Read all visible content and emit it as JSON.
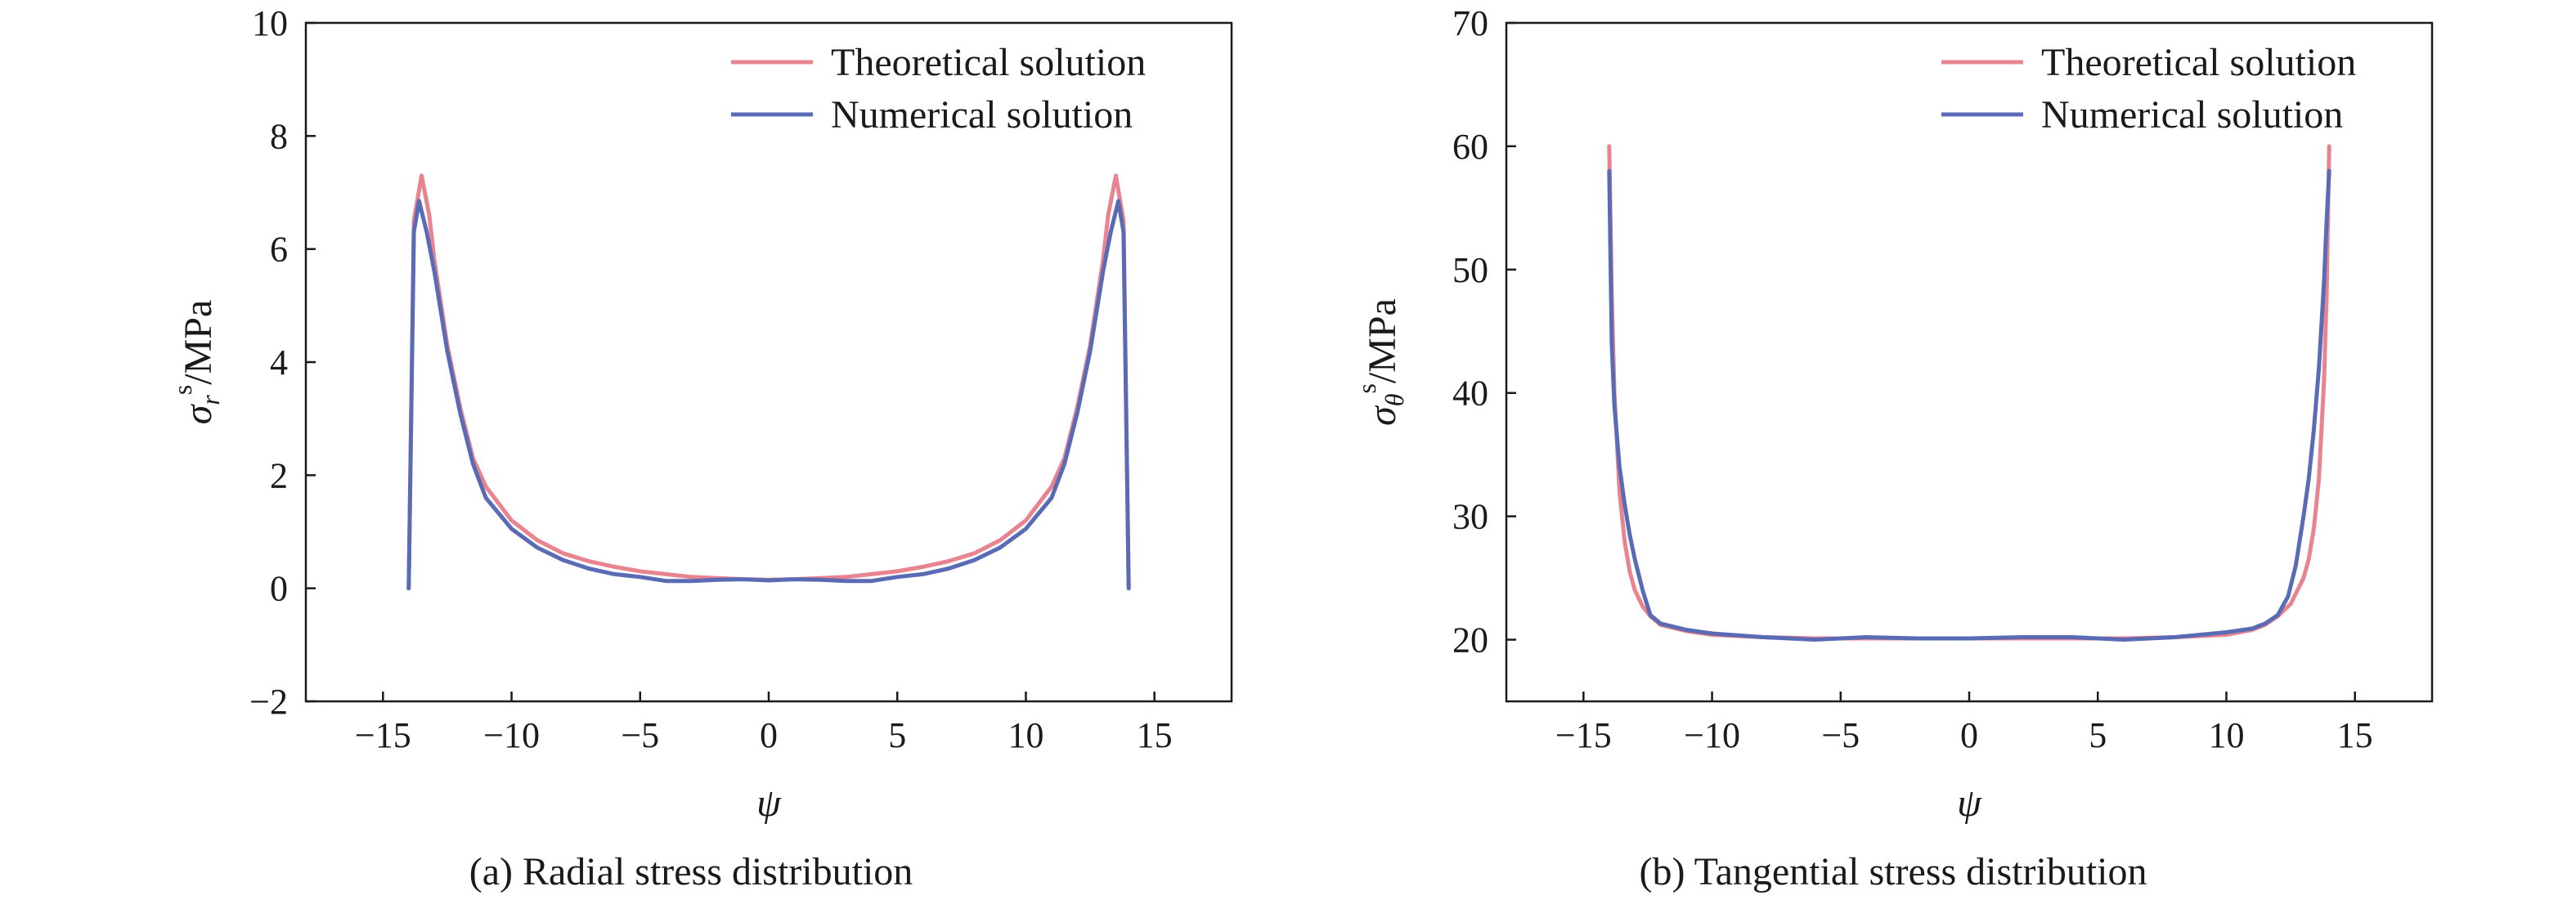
{
  "colors": {
    "theoretical": "#e8848f",
    "numerical": "#5a6bb5",
    "axis": "#1a1a1a"
  },
  "chart_data": [
    {
      "type": "line",
      "caption": "(a) Radial stress distribution",
      "xlabel": "ψ",
      "ylabel": "σrs/MPa",
      "ylabel_parts": {
        "base": "σ",
        "sub": "r",
        "sup": "s",
        "unit": "/MPa"
      },
      "xlim": [
        -18,
        18
      ],
      "ylim": [
        -2,
        10
      ],
      "xticks": [
        -15,
        -10,
        -5,
        0,
        5,
        10,
        15
      ],
      "yticks": [
        -2,
        0,
        2,
        4,
        6,
        8,
        10
      ],
      "xtick_labels": [
        "−15",
        "−10",
        "−5",
        "0",
        "5",
        "10",
        "15"
      ],
      "ytick_labels": [
        "−2",
        "0",
        "2",
        "4",
        "6",
        "8",
        "10"
      ],
      "grid": false,
      "legend_position": "top-right",
      "series": [
        {
          "name": "Theoretical solution",
          "color_key": "theoretical",
          "x": [
            -14,
            -13.8,
            -13.5,
            -13.2,
            -13,
            -12.5,
            -12,
            -11.5,
            -11,
            -10,
            -9,
            -8,
            -7,
            -6,
            -5,
            -4,
            -3,
            -2,
            -1,
            0,
            1,
            2,
            3,
            4,
            5,
            6,
            7,
            8,
            9,
            10,
            11,
            11.5,
            12,
            12.5,
            13,
            13.2,
            13.5,
            13.8,
            14
          ],
          "y": [
            0,
            6.5,
            7.3,
            6.6,
            5.8,
            4.3,
            3.2,
            2.3,
            1.8,
            1.2,
            0.85,
            0.62,
            0.48,
            0.38,
            0.3,
            0.25,
            0.2,
            0.18,
            0.16,
            0.15,
            0.16,
            0.18,
            0.2,
            0.25,
            0.3,
            0.38,
            0.48,
            0.62,
            0.85,
            1.2,
            1.8,
            2.3,
            3.2,
            4.3,
            5.8,
            6.6,
            7.3,
            6.5,
            0
          ]
        },
        {
          "name": "Numerical solution",
          "color_key": "numerical",
          "x": [
            -14,
            -13.8,
            -13.6,
            -13.3,
            -13,
            -12.5,
            -12,
            -11.5,
            -11,
            -10,
            -9,
            -8,
            -7,
            -6,
            -5,
            -4,
            -3,
            -2,
            -1,
            0,
            1,
            2,
            3,
            4,
            5,
            6,
            7,
            8,
            9,
            10,
            11,
            11.5,
            12,
            12.5,
            13,
            13.3,
            13.6,
            13.8,
            14
          ],
          "y": [
            0,
            6.3,
            6.85,
            6.3,
            5.6,
            4.2,
            3.1,
            2.2,
            1.6,
            1.05,
            0.72,
            0.5,
            0.35,
            0.25,
            0.2,
            0.13,
            0.13,
            0.15,
            0.16,
            0.14,
            0.16,
            0.15,
            0.13,
            0.13,
            0.2,
            0.25,
            0.35,
            0.5,
            0.72,
            1.05,
            1.6,
            2.2,
            3.1,
            4.2,
            5.6,
            6.3,
            6.85,
            6.3,
            0
          ]
        }
      ]
    },
    {
      "type": "line",
      "caption": "(b) Tangential stress distribution",
      "xlabel": "ψ",
      "ylabel": "σθs/MPa",
      "ylabel_parts": {
        "base": "σ",
        "sub": "θ",
        "sup": "s",
        "unit": "/MPa"
      },
      "xlim": [
        -18,
        18
      ],
      "ylim": [
        15,
        70
      ],
      "xticks": [
        -15,
        -10,
        -5,
        0,
        5,
        10,
        15
      ],
      "yticks": [
        20,
        30,
        40,
        50,
        60,
        70
      ],
      "xtick_labels": [
        "−15",
        "−10",
        "−5",
        "0",
        "5",
        "10",
        "15"
      ],
      "ytick_labels": [
        "20",
        "30",
        "40",
        "50",
        "60",
        "70"
      ],
      "grid": false,
      "legend_position": "top-right",
      "series": [
        {
          "name": "Theoretical solution",
          "color_key": "theoretical",
          "x": [
            -14,
            -13.9,
            -13.8,
            -13.6,
            -13.4,
            -13.2,
            -13,
            -12.7,
            -12.4,
            -12,
            -11,
            -10,
            -8,
            -6,
            -4,
            -2,
            0,
            2,
            4,
            6,
            8,
            10,
            11,
            11.5,
            12,
            12.5,
            13,
            13.2,
            13.4,
            13.6,
            13.8,
            13.9,
            14
          ],
          "y": [
            60,
            48,
            40,
            32,
            28,
            25.5,
            24,
            22.7,
            21.9,
            21.2,
            20.7,
            20.4,
            20.2,
            20.1,
            20.1,
            20.1,
            20.1,
            20.1,
            20.1,
            20.1,
            20.2,
            20.4,
            20.8,
            21.2,
            21.9,
            22.9,
            25,
            26.5,
            29,
            33,
            41,
            48,
            60
          ]
        },
        {
          "name": "Numerical solution",
          "color_key": "numerical",
          "x": [
            -14,
            -13.9,
            -13.8,
            -13.6,
            -13.4,
            -13.2,
            -13,
            -12.7,
            -12.4,
            -12,
            -11,
            -10,
            -8,
            -6,
            -4,
            -2,
            0,
            2,
            4,
            6,
            8,
            10,
            11,
            11.5,
            12,
            12.4,
            12.7,
            13,
            13.2,
            13.4,
            13.6,
            13.8,
            13.9,
            14
          ],
          "y": [
            58,
            44,
            39,
            34,
            31,
            28.5,
            26.5,
            24,
            22,
            21.3,
            20.8,
            20.5,
            20.2,
            20,
            20.2,
            20.1,
            20.1,
            20.2,
            20.2,
            20,
            20.2,
            20.6,
            20.9,
            21.3,
            22,
            23.5,
            26,
            30,
            33,
            37,
            42,
            49,
            54,
            58
          ]
        }
      ]
    }
  ]
}
